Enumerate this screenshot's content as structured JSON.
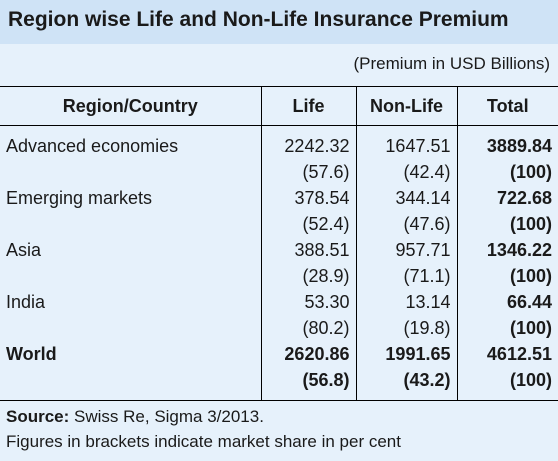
{
  "title": "Region wise Life and Non-Life Insurance Premium",
  "unit_note": "(Premium in USD Billions)",
  "table": {
    "headers": [
      "Region/Country",
      "Life",
      "Non-Life",
      "Total"
    ],
    "rows": [
      {
        "name": "Advanced economies",
        "life": "2242.32",
        "nonlife": "1647.51",
        "total": "3889.84",
        "life_share": "(57.6)",
        "nonlife_share": "(42.4)",
        "total_share": "(100)"
      },
      {
        "name": "Emerging markets",
        "life": "378.54",
        "nonlife": "344.14",
        "total": "722.68",
        "life_share": "(52.4)",
        "nonlife_share": "(47.6)",
        "total_share": "(100)"
      },
      {
        "name": "Asia",
        "life": "388.51",
        "nonlife": "957.71",
        "total": "1346.22",
        "life_share": "(28.9)",
        "nonlife_share": "(71.1)",
        "total_share": "(100)"
      },
      {
        "name": "India",
        "life": "53.30",
        "nonlife": "13.14",
        "total": "66.44",
        "life_share": "(80.2)",
        "nonlife_share": "(19.8)",
        "total_share": "(100)"
      },
      {
        "name": "World",
        "life": "2620.86",
        "nonlife": "1991.65",
        "total": "4612.51",
        "life_share": "(56.8)",
        "nonlife_share": "(43.2)",
        "total_share": "(100)"
      }
    ]
  },
  "source": {
    "label": "Source:",
    "text": " Swiss Re, Sigma 3/2013."
  },
  "note": "Figures in brackets indicate market share in per cent",
  "colors": {
    "title_bg": "#cfe3f6",
    "page_bg": "#e6f1fb"
  }
}
